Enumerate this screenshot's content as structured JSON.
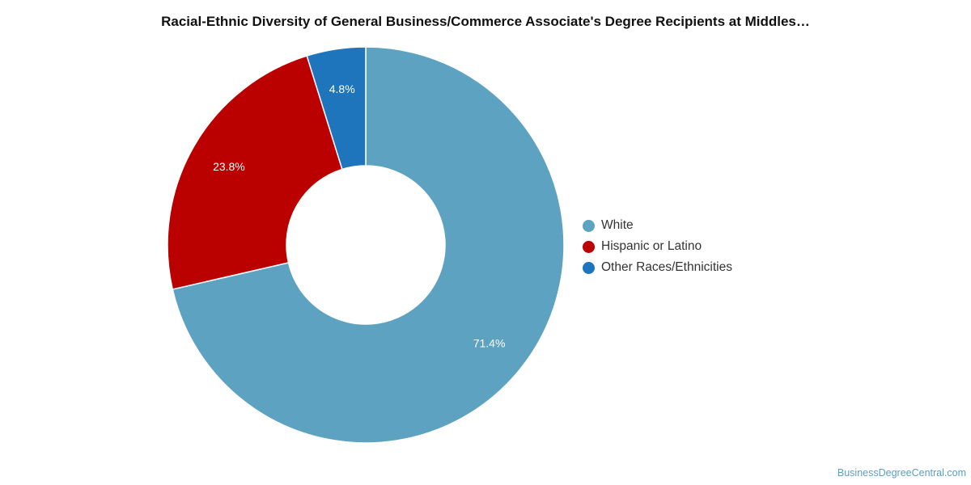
{
  "chart_data": {
    "type": "pie",
    "title": "Racial-Ethnic Diversity of General Business/Commerce Associate's Degree Recipients at Middles…",
    "donut": true,
    "slices": [
      {
        "name": "White",
        "value": 71.4,
        "label": "71.4%",
        "color": "#5da2c0"
      },
      {
        "name": "Hispanic or Latino",
        "value": 23.8,
        "label": "23.8%",
        "color": "#bb0000"
      },
      {
        "name": "Other Races/Ethnicities",
        "value": 4.8,
        "label": "4.8%",
        "color": "#1f75bc"
      }
    ],
    "legend_position": "right"
  },
  "source": "BusinessDegreeCentral.com"
}
